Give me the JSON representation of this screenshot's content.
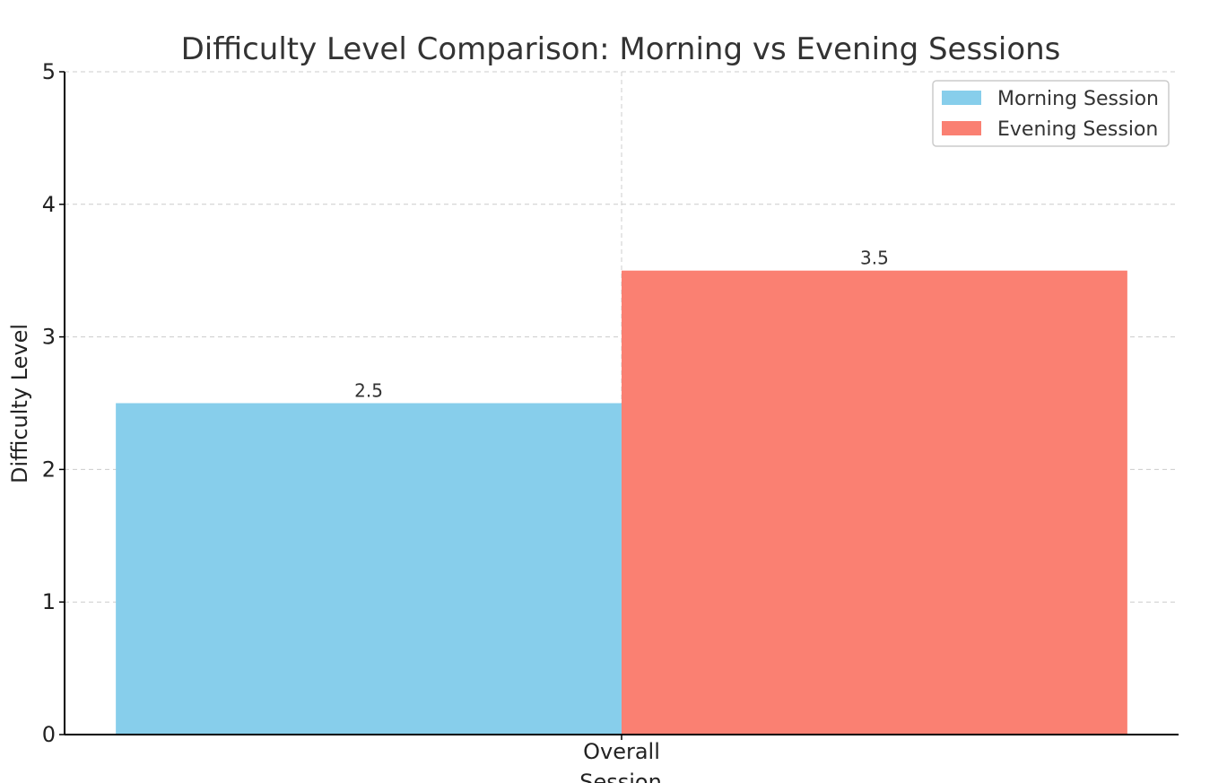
{
  "chart_data": {
    "type": "bar",
    "title": "Difficulty Level Comparison: Morning vs Evening Sessions",
    "xlabel": "Session",
    "ylabel": "Difficulty Level",
    "categories": [
      "Overall"
    ],
    "series": [
      {
        "name": "Morning Session",
        "values": [
          2.5
        ],
        "color": "#87CEEB"
      },
      {
        "name": "Evening Session",
        "values": [
          3.5
        ],
        "color": "#FA8072"
      }
    ],
    "ylim": [
      0,
      5
    ],
    "yticks": [
      "0",
      "1",
      "2",
      "3",
      "4",
      "5"
    ],
    "value_labels": [
      "2.5",
      "3.5"
    ],
    "grid": true,
    "legend_position": "top-right"
  }
}
